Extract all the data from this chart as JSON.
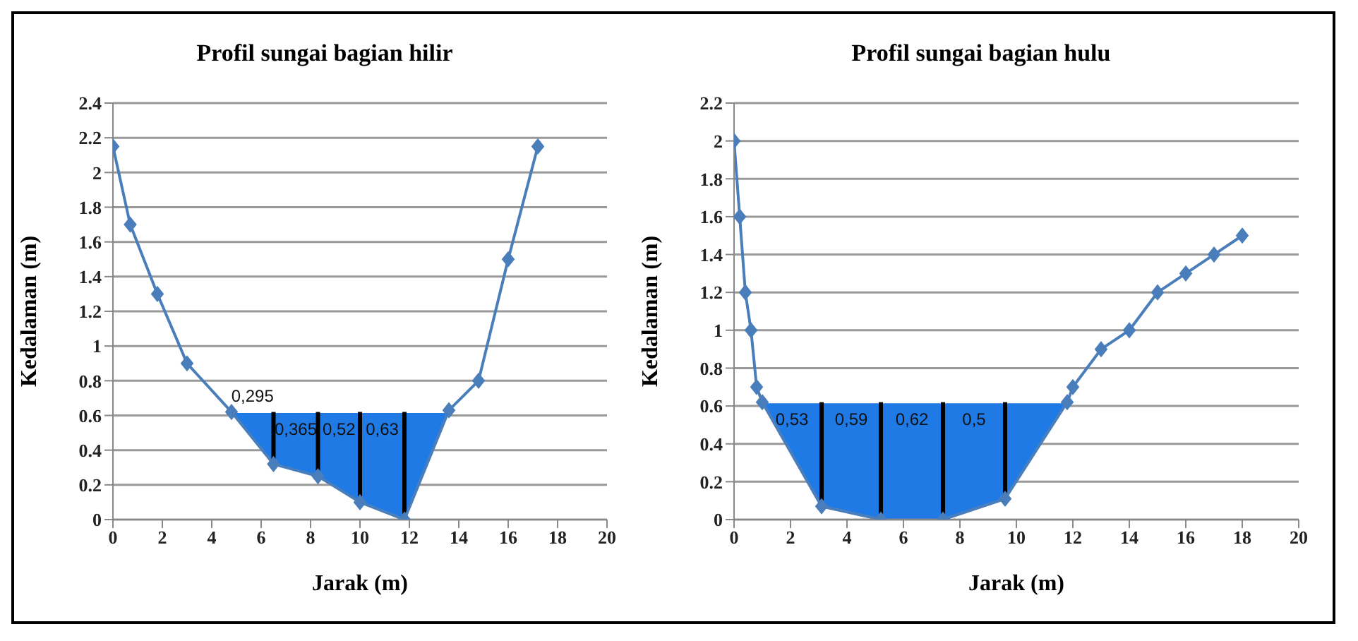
{
  "chart_data": [
    {
      "type": "line",
      "title": "Profil sungai bagian hilir",
      "xlabel": "Jarak (m)",
      "ylabel": "Kedalaman (m)",
      "xlim": [
        0,
        20
      ],
      "xticks": [
        0,
        2,
        4,
        6,
        8,
        10,
        12,
        14,
        16,
        18,
        20
      ],
      "ylim": [
        0,
        2.4
      ],
      "yticks": [
        0,
        0.2,
        0.4,
        0.6,
        0.8,
        1,
        1.2,
        1.4,
        1.6,
        1.8,
        2,
        2.2,
        2.4
      ],
      "grid": "y",
      "series": [
        {
          "type": "area",
          "color": "#1f7ae6",
          "x": [
            4.8,
            6.5,
            8.3,
            10,
            11.8,
            13.6
          ],
          "values": [
            0.62,
            0.62,
            0.62,
            0.62,
            0.62,
            0.62
          ]
        },
        {
          "marker": "diamond",
          "color": "#4a7ebb",
          "x": [
            0,
            0.7,
            1.8,
            3,
            4.8,
            6.5,
            8.3,
            10,
            11.8,
            13.6,
            14.8,
            16,
            17.2
          ],
          "values": [
            2.15,
            1.7,
            1.3,
            0.9,
            0.62,
            0.32,
            0.25,
            0.1,
            0,
            0.63,
            0.8,
            1.5,
            2.15
          ]
        },
        {
          "type": "bar",
          "color": "#000000",
          "x": [
            6.5,
            8.3,
            10,
            11.8
          ],
          "base": [
            0.32,
            0.25,
            0.1,
            0
          ],
          "values": [
            0.3,
            0.37,
            0.52,
            0.62
          ]
        }
      ],
      "annotations": [
        "0,295",
        "0,365",
        "0,52",
        "0,63"
      ]
    },
    {
      "type": "line",
      "title": "Profil sungai bagian hulu",
      "xlabel": "Jarak (m)",
      "ylabel": "Kedalaman (m)",
      "xlim": [
        0,
        20
      ],
      "xticks": [
        0,
        2,
        4,
        6,
        8,
        10,
        12,
        14,
        16,
        18,
        20
      ],
      "ylim": [
        0,
        2.2
      ],
      "yticks": [
        0,
        0.2,
        0.4,
        0.6,
        0.8,
        1,
        1.2,
        1.4,
        1.6,
        1.8,
        2,
        2.2
      ],
      "grid": "y",
      "series": [
        {
          "type": "area",
          "color": "#1f7ae6",
          "x": [
            1,
            3.1,
            5.2,
            7.4,
            9.6,
            11.8
          ],
          "values": [
            0.62,
            0.62,
            0.62,
            0.62,
            0.62,
            0.62
          ]
        },
        {
          "marker": "diamond",
          "color": "#4a7ebb",
          "x": [
            0,
            0.2,
            0.4,
            0.6,
            0.8,
            1,
            3.1,
            5.2,
            7.4,
            9.6,
            11.8,
            12,
            13,
            14,
            15,
            16,
            17,
            18
          ],
          "values": [
            2,
            1.6,
            1.2,
            1,
            0.7,
            0.62,
            0.07,
            0,
            0,
            0.11,
            0.62,
            0.7,
            0.9,
            1,
            1.2,
            1.3,
            1.4,
            1.5
          ]
        },
        {
          "type": "bar",
          "color": "#000000",
          "x": [
            3.1,
            5.2,
            7.4,
            9.6
          ],
          "base": [
            0.07,
            0,
            0,
            0.11
          ],
          "values": [
            0.55,
            0.62,
            0.62,
            0.51
          ]
        }
      ],
      "annotations": [
        "0,53",
        "0,59",
        "0,62",
        "0,5"
      ]
    }
  ]
}
